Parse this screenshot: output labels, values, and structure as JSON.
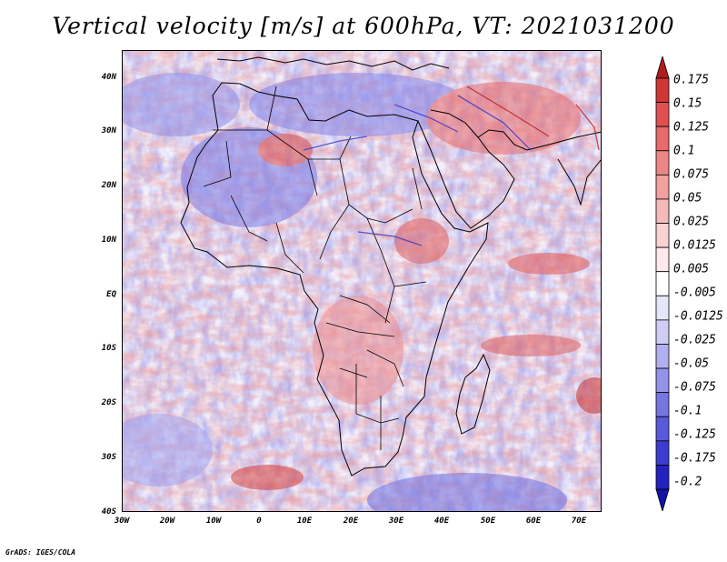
{
  "title": "Vertical velocity [m/s] at 600hPa, VT: 2021031200",
  "credit": "GrADS: IGES/COLA",
  "map": {
    "region": "Africa",
    "field": "vertical-velocity",
    "level": "600hPa",
    "lon_range": [
      -30,
      75
    ],
    "lat_range": [
      -40,
      45
    ],
    "x_ticks": [
      "30W",
      "20W",
      "10W",
      "0",
      "10E",
      "20E",
      "30E",
      "40E",
      "50E",
      "60E",
      "70E"
    ],
    "x_tick_lons": [
      -30,
      -20,
      -10,
      0,
      10,
      20,
      30,
      40,
      50,
      60,
      70
    ],
    "y_ticks": [
      "40N",
      "30N",
      "20N",
      "10N",
      "EQ",
      "10S",
      "20S",
      "30S",
      "40S"
    ],
    "y_tick_lats": [
      40,
      30,
      20,
      10,
      0,
      -10,
      -20,
      -30,
      -40
    ]
  },
  "colorbar": {
    "labels": [
      "0.175",
      "0.15",
      "0.125",
      "0.1",
      "0.075",
      "0.05",
      "0.025",
      "0.0125",
      "0.005",
      "-0.005",
      "-0.0125",
      "-0.025",
      "-0.05",
      "-0.075",
      "-0.1",
      "-0.125",
      "-0.175",
      "-0.2"
    ],
    "colors": [
      "#b01d1d",
      "#d13535",
      "#e05050",
      "#e86a6a",
      "#ee8585",
      "#f2a0a0",
      "#f6b9b9",
      "#fad2d2",
      "#fde9e9",
      "#ffffff",
      "#e6e6fb",
      "#cdcdf6",
      "#b0b0f0",
      "#9393ea",
      "#7676e3",
      "#5959dc",
      "#3c3cd2",
      "#2222c0",
      "#1212a8"
    ]
  }
}
